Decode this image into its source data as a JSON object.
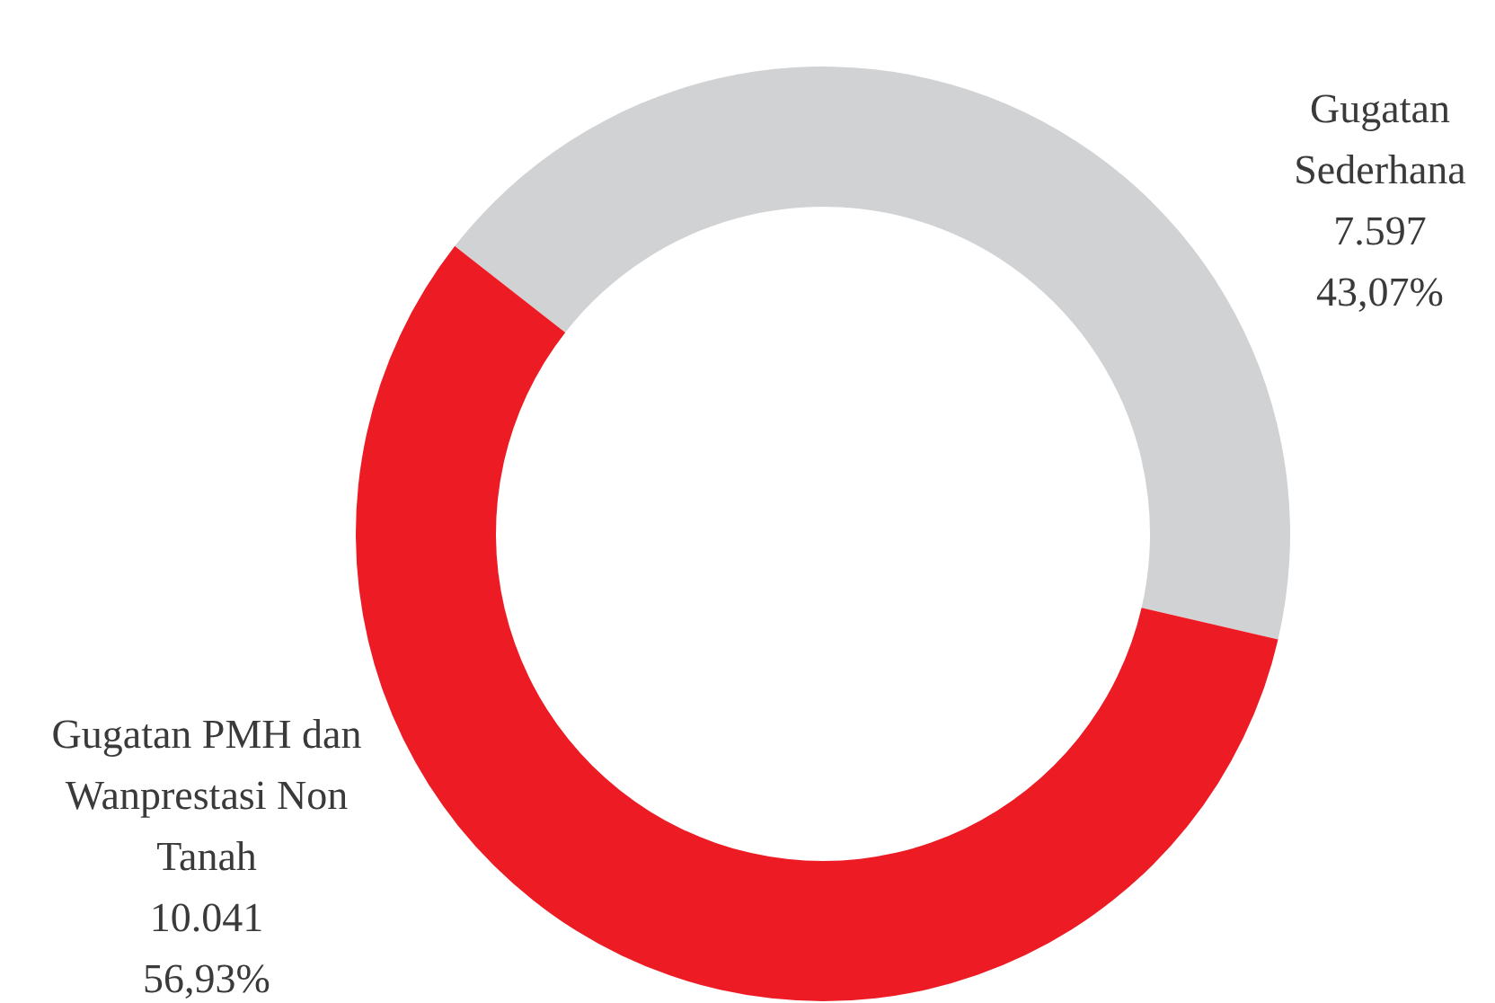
{
  "chart_data": {
    "type": "donut",
    "categories": [
      "Gugatan Sederhana",
      "Gugatan PMH dan Wanprestasi Non Tanah"
    ],
    "values": [
      7597,
      10041
    ],
    "colors": [
      "#d1d2d4",
      "#ed1c24"
    ],
    "value_labels": [
      "7.597",
      "10.041"
    ],
    "annotations": [
      "43,07%",
      "56,93%"
    ],
    "legend": false
  }
}
